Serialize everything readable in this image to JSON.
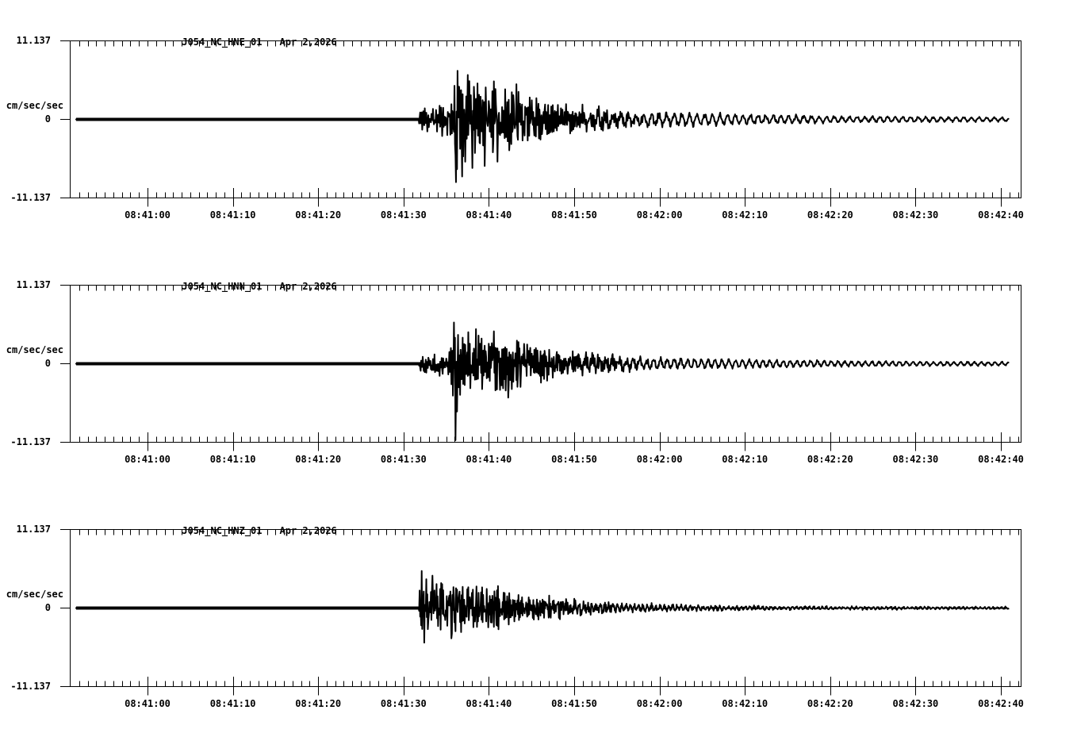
{
  "page": {
    "background_color": "#ffffff",
    "ink_color": "#000000"
  },
  "time_axis": {
    "tick_labels": [
      "08:41:00",
      "08:41:10",
      "08:41:20",
      "08:41:30",
      "08:41:40",
      "08:41:50",
      "08:42:00",
      "08:42:10",
      "08:42:20",
      "08:42:30",
      "08:42:40"
    ],
    "tick_times_s": [
      0,
      10,
      20,
      30,
      40,
      50,
      60,
      70,
      80,
      90,
      100
    ],
    "minor_tick_interval_s": 1,
    "axis_range_s": [
      -9.1,
      102.4
    ]
  },
  "chart_data": [
    {
      "type": "line",
      "title": "J054_NC_HNE_01",
      "date": "Apr 2,2026",
      "ylabel_units": "cm/sec/sec",
      "y_max": 11.137,
      "y_min": -11.137,
      "y_tick_labels": {
        "top": "11.137",
        "zero": "0",
        "bottom": "-11.137"
      },
      "trace_span_s": [
        -8.37,
        100.9
      ],
      "onset_s": 31.8,
      "envelope": [
        [
          -8.4,
          0.08
        ],
        [
          31.7,
          0.08
        ],
        [
          31.9,
          2.0
        ],
        [
          33,
          2.2
        ],
        [
          35,
          2.5
        ],
        [
          35.8,
          4.2
        ],
        [
          36.3,
          8.8
        ],
        [
          37.2,
          7.2
        ],
        [
          38.2,
          5.6
        ],
        [
          40,
          5.8
        ],
        [
          41.5,
          4.9
        ],
        [
          43,
          5.0
        ],
        [
          44.5,
          3.9
        ],
        [
          46,
          3.3
        ],
        [
          48,
          3.0
        ],
        [
          50,
          2.6
        ],
        [
          52,
          2.2
        ],
        [
          54,
          1.9
        ],
        [
          56,
          1.7
        ],
        [
          58,
          1.5
        ],
        [
          60,
          1.35
        ],
        [
          63,
          1.2
        ],
        [
          66,
          1.1
        ],
        [
          69,
          0.95
        ],
        [
          72,
          0.85
        ],
        [
          75,
          0.8
        ],
        [
          78,
          0.68
        ],
        [
          81,
          0.6
        ],
        [
          85,
          0.55
        ],
        [
          90,
          0.5
        ],
        [
          95,
          0.45
        ],
        [
          100.9,
          0.4
        ]
      ],
      "spikes": [
        [
          36.15,
          -8.9
        ],
        [
          36.35,
          6.9
        ],
        [
          36.85,
          -8.1
        ],
        [
          37.55,
          6.3
        ],
        [
          38.05,
          -6.9
        ],
        [
          39.5,
          -6.6
        ],
        [
          41.0,
          -6.0
        ],
        [
          43.2,
          5.0
        ]
      ],
      "hf_freq_hz": 5.2,
      "lf_freq_hz": 1.12,
      "hf_floor": 0.28,
      "seed": 11
    },
    {
      "type": "line",
      "title": "J054_NC_HNN_01",
      "date": "Apr 2,2026",
      "ylabel_units": "cm/sec/sec",
      "y_max": 11.137,
      "y_min": -11.137,
      "y_tick_labels": {
        "top": "11.137",
        "zero": "0",
        "bottom": "-11.137"
      },
      "trace_span_s": [
        -8.37,
        100.9
      ],
      "onset_s": 31.8,
      "envelope": [
        [
          -8.4,
          0.08
        ],
        [
          31.7,
          0.08
        ],
        [
          31.9,
          1.5
        ],
        [
          33,
          1.6
        ],
        [
          35,
          1.8
        ],
        [
          35.7,
          3.6
        ],
        [
          36.1,
          10.8
        ],
        [
          36.7,
          5.0
        ],
        [
          37.5,
          4.5
        ],
        [
          39,
          4.7
        ],
        [
          40.5,
          4.2
        ],
        [
          42,
          4.4
        ],
        [
          43.5,
          3.7
        ],
        [
          45,
          3.2
        ],
        [
          46.5,
          2.9
        ],
        [
          48,
          2.6
        ],
        [
          50,
          2.3
        ],
        [
          52,
          2.0
        ],
        [
          54,
          1.7
        ],
        [
          56,
          1.5
        ],
        [
          58,
          1.3
        ],
        [
          60,
          1.15
        ],
        [
          63,
          1.0
        ],
        [
          66,
          0.9
        ],
        [
          69,
          0.8
        ],
        [
          72,
          0.7
        ],
        [
          75,
          0.65
        ],
        [
          78,
          0.6
        ],
        [
          82,
          0.5
        ],
        [
          86,
          0.45
        ],
        [
          90,
          0.4
        ],
        [
          95,
          0.38
        ],
        [
          100.9,
          0.35
        ]
      ],
      "spikes": [
        [
          35.9,
          5.85
        ],
        [
          36.12,
          -10.85
        ],
        [
          38.5,
          4.9
        ],
        [
          40.6,
          4.6
        ],
        [
          42.3,
          -4.8
        ]
      ],
      "hf_freq_hz": 5.8,
      "lf_freq_hz": 1.25,
      "hf_floor": 0.28,
      "seed": 22
    },
    {
      "type": "line",
      "title": "J054_NC_HNZ_01",
      "date": "Apr 2,2026",
      "ylabel_units": "cm/sec/sec",
      "y_max": 11.137,
      "y_min": -11.137,
      "y_tick_labels": {
        "top": "11.137",
        "zero": "0",
        "bottom": "-11.137"
      },
      "trace_span_s": [
        -8.37,
        100.9
      ],
      "onset_s": 31.8,
      "envelope": [
        [
          -8.4,
          0.08
        ],
        [
          31.7,
          0.08
        ],
        [
          31.9,
          4.6
        ],
        [
          32.3,
          5.2
        ],
        [
          33.5,
          4.2
        ],
        [
          35,
          3.8
        ],
        [
          36.5,
          4.0
        ],
        [
          38,
          3.4
        ],
        [
          39.5,
          3.0
        ],
        [
          41,
          3.2
        ],
        [
          42.5,
          2.7
        ],
        [
          44,
          2.4
        ],
        [
          46,
          2.1
        ],
        [
          48,
          1.8
        ],
        [
          50,
          1.5
        ],
        [
          52,
          1.3
        ],
        [
          54,
          1.1
        ],
        [
          56,
          0.95
        ],
        [
          58,
          0.8
        ],
        [
          60,
          0.7
        ],
        [
          63,
          0.6
        ],
        [
          66,
          0.5
        ],
        [
          70,
          0.42
        ],
        [
          75,
          0.38
        ],
        [
          80,
          0.32
        ],
        [
          85,
          0.3
        ],
        [
          90,
          0.28
        ],
        [
          95,
          0.26
        ],
        [
          100.9,
          0.24
        ]
      ],
      "spikes": [
        [
          32.15,
          5.25
        ],
        [
          32.45,
          -4.9
        ],
        [
          33.4,
          4.6
        ],
        [
          35.6,
          -4.3
        ]
      ],
      "hf_freq_hz": 7.5,
      "lf_freq_hz": 2.0,
      "hf_floor": 0.55,
      "seed": 33
    }
  ]
}
